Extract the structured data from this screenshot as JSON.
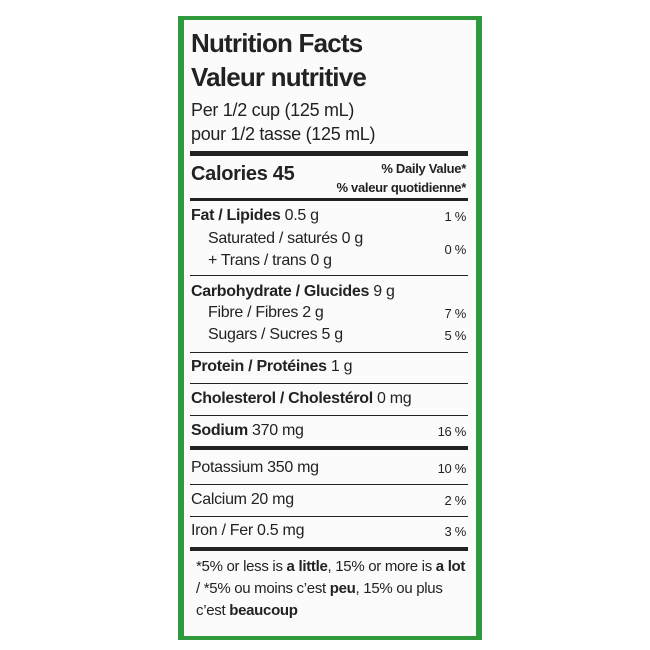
{
  "header": {
    "title_en": "Nutrition Facts",
    "title_fr": "Valeur nutritive",
    "serving_en": "Per 1/2 cup (125 mL)",
    "serving_fr": "pour 1/2 tasse (125 mL)"
  },
  "calories": "Calories 45",
  "daily_value": {
    "en": "% Daily Value*",
    "fr": "% valeur quotidienne*"
  },
  "rows": [
    {
      "name": "Fat / Lipides",
      "amount": "0.5 g",
      "dv": "1 %"
    },
    {
      "name": "Saturated / saturés 0 g",
      "dv": "0 %"
    },
    {
      "name": "+ Trans / trans 0 g"
    },
    {
      "name": "Carbohydrate / Glucides",
      "amount": "9 g"
    },
    {
      "name": "Fibre / Fibres 2 g",
      "dv": "7 %"
    },
    {
      "name": "Sugars / Sucres 5 g",
      "dv": "5 %"
    },
    {
      "name": "Protein / Protéines",
      "amount": "1 g"
    },
    {
      "name": "Cholesterol / Cholestérol",
      "amount": "0 mg"
    },
    {
      "name": "Sodium",
      "amount": "370 mg",
      "dv": "16 %"
    },
    {
      "name": "Potassium 350 mg",
      "dv": "10 %"
    },
    {
      "name": "Calcium 20 mg",
      "dv": "2 %"
    },
    {
      "name": "Iron / Fer 0.5 mg",
      "dv": "3 %"
    }
  ],
  "footnote": [
    "*5% or less is ",
    "a little",
    ", 15% or more is ",
    "a lot",
    " / *5% ou moins c’est ",
    "peu",
    ", 15% ou plus c’est ",
    "beaucoup"
  ]
}
